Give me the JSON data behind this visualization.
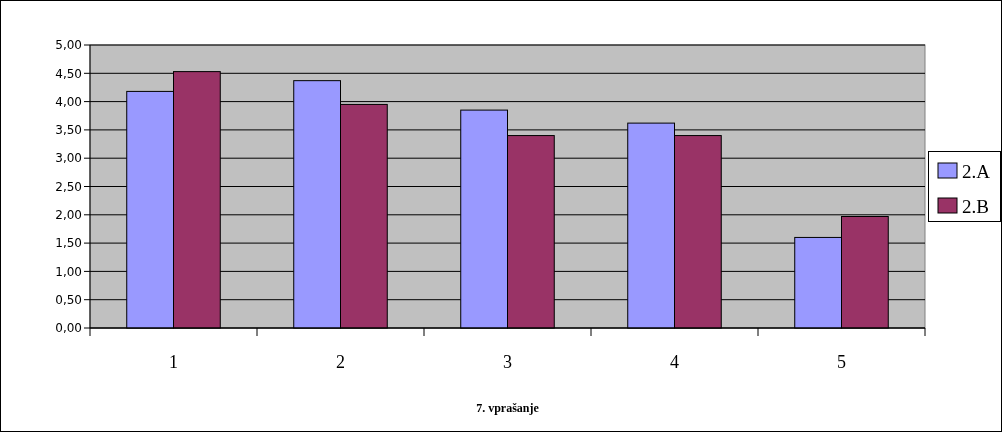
{
  "chart_data": {
    "type": "bar",
    "xlabel": "7. vprašanje",
    "categories": [
      "1",
      "2",
      "3",
      "4",
      "5"
    ],
    "series": [
      {
        "name": "2.A",
        "color": "#9999ff",
        "values": [
          4.18,
          4.37,
          3.85,
          3.62,
          1.6
        ]
      },
      {
        "name": "2.B",
        "color": "#993366",
        "values": [
          4.53,
          3.95,
          3.4,
          3.4,
          1.97
        ]
      }
    ],
    "ylim": [
      0,
      5
    ],
    "yticks": [
      {
        "value": 0,
        "label": "0,00"
      },
      {
        "value": 0.5,
        "label": "0,50"
      },
      {
        "value": 1,
        "label": "1,00"
      },
      {
        "value": 1.5,
        "label": "1,50"
      },
      {
        "value": 2,
        "label": "2,00"
      },
      {
        "value": 2.5,
        "label": "2,50"
      },
      {
        "value": 3,
        "label": "3,00"
      },
      {
        "value": 3.5,
        "label": "3,50"
      },
      {
        "value": 4,
        "label": "4,00"
      },
      {
        "value": 4.5,
        "label": "4,50"
      },
      {
        "value": 5,
        "label": "5,00"
      }
    ],
    "grid": "y",
    "legend": "right"
  }
}
